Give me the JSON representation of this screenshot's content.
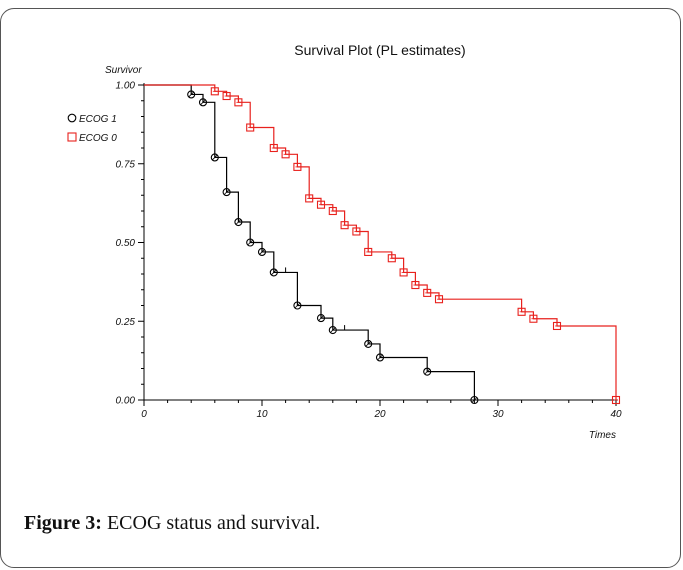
{
  "chart_data": {
    "type": "line",
    "title": "Survival Plot (PL estimates)",
    "ylabel": "Survivor",
    "xlabel": "Times",
    "xlim": [
      0,
      40
    ],
    "ylim": [
      0,
      1
    ],
    "xticks": [
      0,
      10,
      20,
      30,
      40
    ],
    "xtick_labels": [
      "0",
      "10",
      "20",
      "30",
      "40"
    ],
    "yticks": [
      0,
      0.25,
      0.5,
      0.75,
      1
    ],
    "ytick_labels": [
      "0.00",
      "0.25",
      "0.50",
      "0.75",
      "1.00"
    ],
    "legend_position": "top-left",
    "series": [
      {
        "name": "ECOG 1",
        "color": "#000000",
        "marker": "circle",
        "steps": [
          [
            0,
            1.0
          ],
          [
            4,
            0.97
          ],
          [
            5,
            0.945
          ],
          [
            6,
            0.77
          ],
          [
            7,
            0.66
          ],
          [
            8,
            0.565
          ],
          [
            9,
            0.5
          ],
          [
            10,
            0.47
          ],
          [
            11,
            0.405
          ],
          [
            13,
            0.3
          ],
          [
            15,
            0.26
          ],
          [
            16,
            0.222
          ],
          [
            19,
            0.178
          ],
          [
            20,
            0.135
          ],
          [
            24,
            0.09
          ],
          [
            28,
            0.0
          ]
        ],
        "event_points": [
          [
            4,
            0.97
          ],
          [
            5,
            0.945
          ],
          [
            6,
            0.77
          ],
          [
            7,
            0.66
          ],
          [
            8,
            0.565
          ],
          [
            9,
            0.5
          ],
          [
            10,
            0.47
          ],
          [
            11,
            0.405
          ],
          [
            13,
            0.3
          ],
          [
            15,
            0.26
          ],
          [
            16,
            0.222
          ],
          [
            19,
            0.178
          ],
          [
            20,
            0.135
          ],
          [
            24,
            0.09
          ],
          [
            28,
            0.0
          ]
        ],
        "censored": [
          [
            12,
            0.405
          ],
          [
            17,
            0.222
          ]
        ]
      },
      {
        "name": "ECOG 0",
        "color": "#e8211d",
        "marker": "square",
        "steps": [
          [
            0,
            1.0
          ],
          [
            6,
            0.98
          ],
          [
            7,
            0.965
          ],
          [
            8,
            0.945
          ],
          [
            9,
            0.865
          ],
          [
            11,
            0.8
          ],
          [
            12,
            0.78
          ],
          [
            13,
            0.74
          ],
          [
            14,
            0.64
          ],
          [
            15,
            0.62
          ],
          [
            16,
            0.6
          ],
          [
            17,
            0.555
          ],
          [
            18,
            0.535
          ],
          [
            19,
            0.47
          ],
          [
            21,
            0.45
          ],
          [
            22,
            0.405
          ],
          [
            23,
            0.365
          ],
          [
            24,
            0.34
          ],
          [
            25,
            0.32
          ],
          [
            32,
            0.28
          ],
          [
            33,
            0.258
          ],
          [
            35,
            0.235
          ],
          [
            40,
            0.0
          ]
        ],
        "event_points": [
          [
            6,
            0.98
          ],
          [
            7,
            0.965
          ],
          [
            8,
            0.945
          ],
          [
            9,
            0.865
          ],
          [
            11,
            0.8
          ],
          [
            12,
            0.78
          ],
          [
            13,
            0.74
          ],
          [
            14,
            0.64
          ],
          [
            15,
            0.62
          ],
          [
            16,
            0.6
          ],
          [
            17,
            0.555
          ],
          [
            18,
            0.535
          ],
          [
            19,
            0.47
          ],
          [
            21,
            0.45
          ],
          [
            22,
            0.405
          ],
          [
            23,
            0.365
          ],
          [
            24,
            0.34
          ],
          [
            25,
            0.32
          ],
          [
            32,
            0.28
          ],
          [
            33,
            0.258
          ],
          [
            35,
            0.235
          ],
          [
            40,
            0.0
          ]
        ],
        "censored": []
      }
    ]
  },
  "caption": {
    "label": "Figure 3:",
    "text": " ECOG status and survival."
  }
}
